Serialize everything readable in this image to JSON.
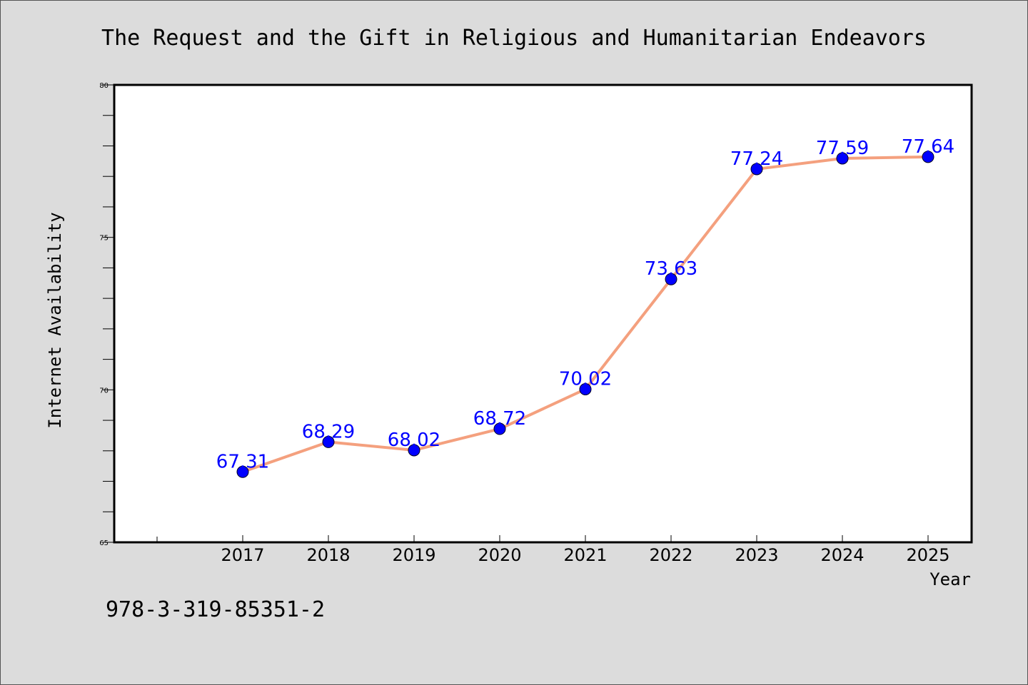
{
  "chart_data": {
    "type": "line",
    "title": "The Request and the Gift in Religious and Humanitarian Endeavors",
    "xlabel": "Year",
    "ylabel": "Internet Availability",
    "x": [
      "2017",
      "2018",
      "2019",
      "2020",
      "2021",
      "2022",
      "2023",
      "2024",
      "2025"
    ],
    "series": [
      {
        "values": [
          67.31,
          68.29,
          68.02,
          68.72,
          70.02,
          73.63,
          77.24,
          77.59,
          77.64
        ]
      }
    ],
    "data_labels": [
      "67.31",
      "68.29",
      "68.02",
      "68.72",
      "70.02",
      "73.63",
      "77.24",
      "77.59",
      "77.64"
    ],
    "ylim": [
      65,
      80
    ],
    "yticks": [
      "65",
      "70",
      "75",
      "80"
    ],
    "grid": false,
    "line_color": "#f4a07e",
    "marker_color": "#0000ff",
    "label_color": "#0000ff"
  },
  "footer_text": "978-3-319-85351-2"
}
